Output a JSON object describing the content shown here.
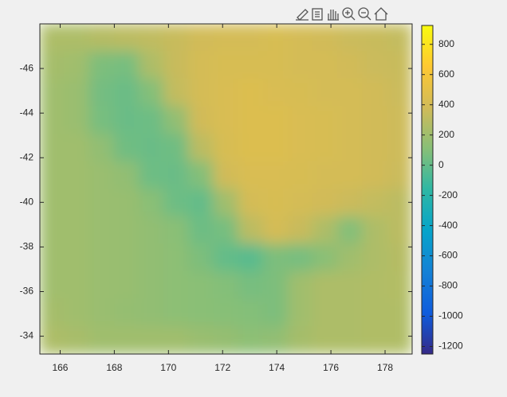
{
  "chart_data": {
    "type": "heatmap",
    "colormap": "parula",
    "xlim": [
      165.25,
      179
    ],
    "ylim": [
      -48,
      -33.2
    ],
    "y_direction": "reverse",
    "xticks": [
      166,
      168,
      170,
      172,
      174,
      176,
      178
    ],
    "yticks": [
      -46,
      -44,
      -42,
      -40,
      -38,
      -36,
      -34
    ],
    "clim": [
      -1250,
      925
    ],
    "cticks": [
      800,
      600,
      400,
      200,
      0,
      -200,
      -400,
      -600,
      -800,
      -1000,
      -1200
    ],
    "z": [
      [
        250,
        250,
        280,
        300,
        320,
        350,
        380,
        400,
        400,
        420,
        400,
        380,
        360,
        350,
        330
      ],
      [
        220,
        200,
        80,
        60,
        250,
        350,
        400,
        420,
        420,
        420,
        400,
        400,
        380,
        360,
        350
      ],
      [
        200,
        180,
        50,
        20,
        100,
        330,
        400,
        430,
        450,
        430,
        420,
        400,
        400,
        380,
        360
      ],
      [
        200,
        180,
        60,
        20,
        30,
        150,
        380,
        430,
        450,
        450,
        430,
        420,
        400,
        380,
        370
      ],
      [
        200,
        200,
        150,
        40,
        20,
        40,
        300,
        420,
        450,
        450,
        430,
        420,
        400,
        380,
        370
      ],
      [
        200,
        200,
        180,
        150,
        30,
        20,
        100,
        380,
        430,
        430,
        420,
        400,
        400,
        380,
        360
      ],
      [
        200,
        200,
        180,
        170,
        120,
        30,
        0,
        200,
        400,
        420,
        400,
        380,
        360,
        330,
        300
      ],
      [
        200,
        200,
        180,
        170,
        150,
        120,
        30,
        60,
        300,
        400,
        350,
        250,
        100,
        250,
        300
      ],
      [
        200,
        200,
        180,
        170,
        150,
        130,
        80,
        0,
        -30,
        80,
        60,
        120,
        200,
        250,
        280
      ],
      [
        200,
        200,
        180,
        170,
        150,
        130,
        120,
        100,
        60,
        80,
        200,
        250,
        250,
        260,
        270
      ],
      [
        220,
        200,
        180,
        160,
        150,
        130,
        120,
        110,
        100,
        80,
        200,
        250,
        250,
        260,
        260
      ],
      [
        250,
        230,
        200,
        200,
        200,
        200,
        180,
        160,
        130,
        150,
        220,
        250,
        250,
        260,
        260
      ]
    ]
  }
}
